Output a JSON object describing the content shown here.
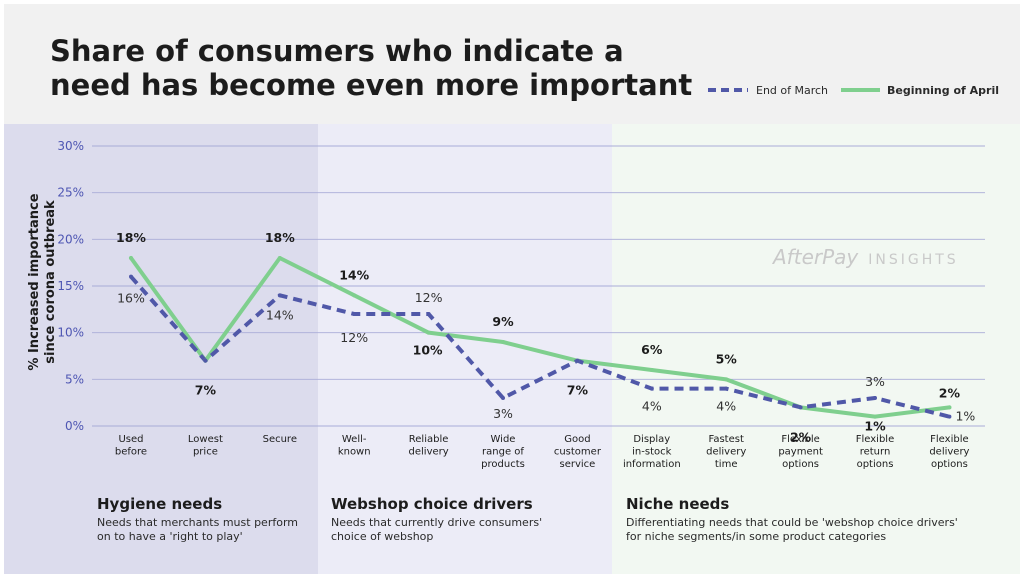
{
  "title_lines": [
    "Share of consumers who indicate a",
    "need has become even more important"
  ],
  "watermark": {
    "brand": "AfterPay",
    "suffix": "INSIGHTS"
  },
  "groups": [
    {
      "title": "Hygiene needs",
      "desc_lines": [
        "Needs that merchants must perform",
        "on to have a 'right to play'"
      ],
      "color": "#dcdced",
      "from": 0,
      "to": 2
    },
    {
      "title": "Webshop choice drivers",
      "desc_lines": [
        "Needs that currently drive consumers'",
        "choice of webshop"
      ],
      "color": "#ececf7",
      "from": 3,
      "to": 6
    },
    {
      "title": "Niche needs",
      "desc_lines": [
        "Differentiating needs that could be 'webshop choice drivers'",
        "for niche segments/in some product categories"
      ],
      "color": "#f2f8f2",
      "from": 7,
      "to": 11
    }
  ],
  "chart_data": {
    "type": "line",
    "title": "Share of consumers who indicate a need has become even more important",
    "ylabel": "% Increased importance since corona outbreak",
    "ylim": [
      0,
      30
    ],
    "yticks": [
      "0%",
      "5%",
      "10%",
      "15%",
      "20%",
      "25%",
      "30%"
    ],
    "grid": true,
    "legend_position": "top-right",
    "categories": [
      [
        "Used",
        "before"
      ],
      [
        "Lowest",
        "price"
      ],
      [
        "Secure"
      ],
      [
        "Well-",
        "known"
      ],
      [
        "Reliable",
        "delivery"
      ],
      [
        "Wide",
        "range of",
        "products"
      ],
      [
        "Good",
        "customer",
        "service"
      ],
      [
        "Display",
        "in-stock",
        "information"
      ],
      [
        "Fastest",
        "delivery",
        "time"
      ],
      [
        "Flexible",
        "payment",
        "options"
      ],
      [
        "Flexible",
        "return",
        "options"
      ],
      [
        "Flexible",
        "delivery",
        "options"
      ]
    ],
    "series": [
      {
        "name": "End of March",
        "style": "dashed",
        "color": "#5058a8",
        "values": [
          16,
          7,
          14,
          12,
          12,
          3,
          7,
          4,
          4,
          2,
          3,
          1
        ],
        "labels": [
          "16%",
          "7%",
          "14%",
          "12%",
          "12%",
          "3%",
          "7%",
          "4%",
          "4%",
          "2%",
          "3%",
          "1%"
        ]
      },
      {
        "name": "Beginning of April",
        "style": "solid",
        "color": "#7fcf8e",
        "values": [
          18,
          7,
          18,
          14,
          10,
          9,
          7,
          6,
          5,
          2,
          1,
          2
        ],
        "labels": [
          "18%",
          "7%",
          "18%",
          "14%",
          "10%",
          "9%",
          "7%",
          "6%",
          "5%",
          "2%",
          "1%",
          "2%"
        ]
      }
    ]
  }
}
